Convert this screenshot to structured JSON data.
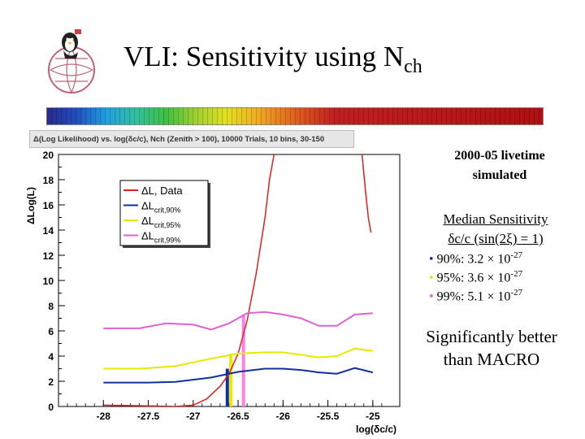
{
  "slide": {
    "title_main": "VLI: Sensitivity using N",
    "title_sub": "ch",
    "livetime_line1": "2000-05 livetime",
    "livetime_line2": "simulated",
    "median_line1": "Median Sensitivity",
    "median_line2": "δc/c (sin(2ξ) = 1)",
    "sensitivities": [
      {
        "bullet": "•",
        "label": "90%: 3.2 × 10",
        "exp": "-27",
        "color": "#1030a0"
      },
      {
        "bullet": "•",
        "label": "95%: 3.6 × 10",
        "exp": "-27",
        "color": "#e8e800"
      },
      {
        "bullet": "•",
        "label": "99%: 5.1 × 10",
        "exp": "-27",
        "color": "#e060d0"
      }
    ],
    "better_line1": "Significantly better",
    "better_line2": "than MACRO"
  },
  "chart_data": {
    "type": "line",
    "title": "Δ(Log Likelihood) vs. log(δc/c), Nch (Zenith > 100), 10000 Trials, 10 bins, 30-150",
    "xlabel": "log(δc/c)",
    "ylabel": "ΔLog(L)",
    "xlim": [
      -28.5,
      -24.7
    ],
    "ylim": [
      0,
      20
    ],
    "x_ticks": [
      -28,
      -27.5,
      -27,
      -26.5,
      -26,
      -25.5,
      -25
    ],
    "y_ticks": [
      0,
      2,
      4,
      6,
      8,
      10,
      12,
      14,
      16,
      18,
      20
    ],
    "grid": false,
    "legend_position": "top-left",
    "series": [
      {
        "name": "ΔL, Data",
        "color": "#e02020",
        "segments": [
          [
            [
              -28,
              0.1
            ],
            [
              -27.5,
              0.05
            ],
            [
              -27.2,
              0.0
            ],
            [
              -27.0,
              0.1
            ],
            [
              -26.85,
              0.6
            ],
            [
              -26.7,
              1.6
            ],
            [
              -26.6,
              2.6
            ],
            [
              -26.5,
              4.2
            ],
            [
              -26.4,
              6.8
            ],
            [
              -26.3,
              10.5
            ],
            [
              -26.2,
              15
            ],
            [
              -26.15,
              18
            ],
            [
              -26.1,
              20
            ]
          ],
          [
            [
              -25.12,
              20
            ],
            [
              -25.08,
              17
            ],
            [
              -25.05,
              15
            ],
            [
              -25.02,
              13.8
            ]
          ]
        ]
      },
      {
        "name": "ΔL",
        "sub": "crit,90%",
        "color": "#1030a0",
        "points": [
          [
            -28,
            1.9
          ],
          [
            -27.5,
            1.9
          ],
          [
            -27.2,
            1.95
          ],
          [
            -26.8,
            2.3
          ],
          [
            -26.5,
            2.75
          ],
          [
            -26.2,
            3.0
          ],
          [
            -26.0,
            3.0
          ],
          [
            -25.8,
            2.9
          ],
          [
            -25.6,
            2.7
          ],
          [
            -25.4,
            2.6
          ],
          [
            -25.2,
            3.05
          ],
          [
            -25.0,
            2.7
          ]
        ]
      },
      {
        "name": "ΔL",
        "sub": "crit,95%",
        "color": "#e8e800",
        "points": [
          [
            -28,
            3.0
          ],
          [
            -27.6,
            3.0
          ],
          [
            -27.2,
            3.2
          ],
          [
            -26.8,
            3.8
          ],
          [
            -26.5,
            4.2
          ],
          [
            -26.2,
            4.3
          ],
          [
            -26.0,
            4.3
          ],
          [
            -25.8,
            4.1
          ],
          [
            -25.6,
            3.9
          ],
          [
            -25.4,
            4.0
          ],
          [
            -25.2,
            4.6
          ],
          [
            -25.0,
            4.4
          ]
        ]
      },
      {
        "name": "ΔL",
        "sub": "crit,99%",
        "color": "#e060d0",
        "points": [
          [
            -28,
            6.2
          ],
          [
            -27.6,
            6.2
          ],
          [
            -27.3,
            6.6
          ],
          [
            -27.0,
            6.5
          ],
          [
            -26.8,
            6.1
          ],
          [
            -26.6,
            6.6
          ],
          [
            -26.4,
            7.4
          ],
          [
            -26.2,
            7.5
          ],
          [
            -26.0,
            7.3
          ],
          [
            -25.8,
            7.0
          ],
          [
            -25.6,
            6.4
          ],
          [
            -25.4,
            6.4
          ],
          [
            -25.2,
            7.3
          ],
          [
            -25.0,
            7.4
          ]
        ]
      }
    ],
    "crossings": [
      {
        "x": -26.62,
        "y": 3.0,
        "color": "#1030a0"
      },
      {
        "x": -26.58,
        "y": 4.2,
        "color": "#e8e800"
      },
      {
        "x": -26.44,
        "y": 7.3,
        "color": "#ff80e0"
      }
    ]
  }
}
